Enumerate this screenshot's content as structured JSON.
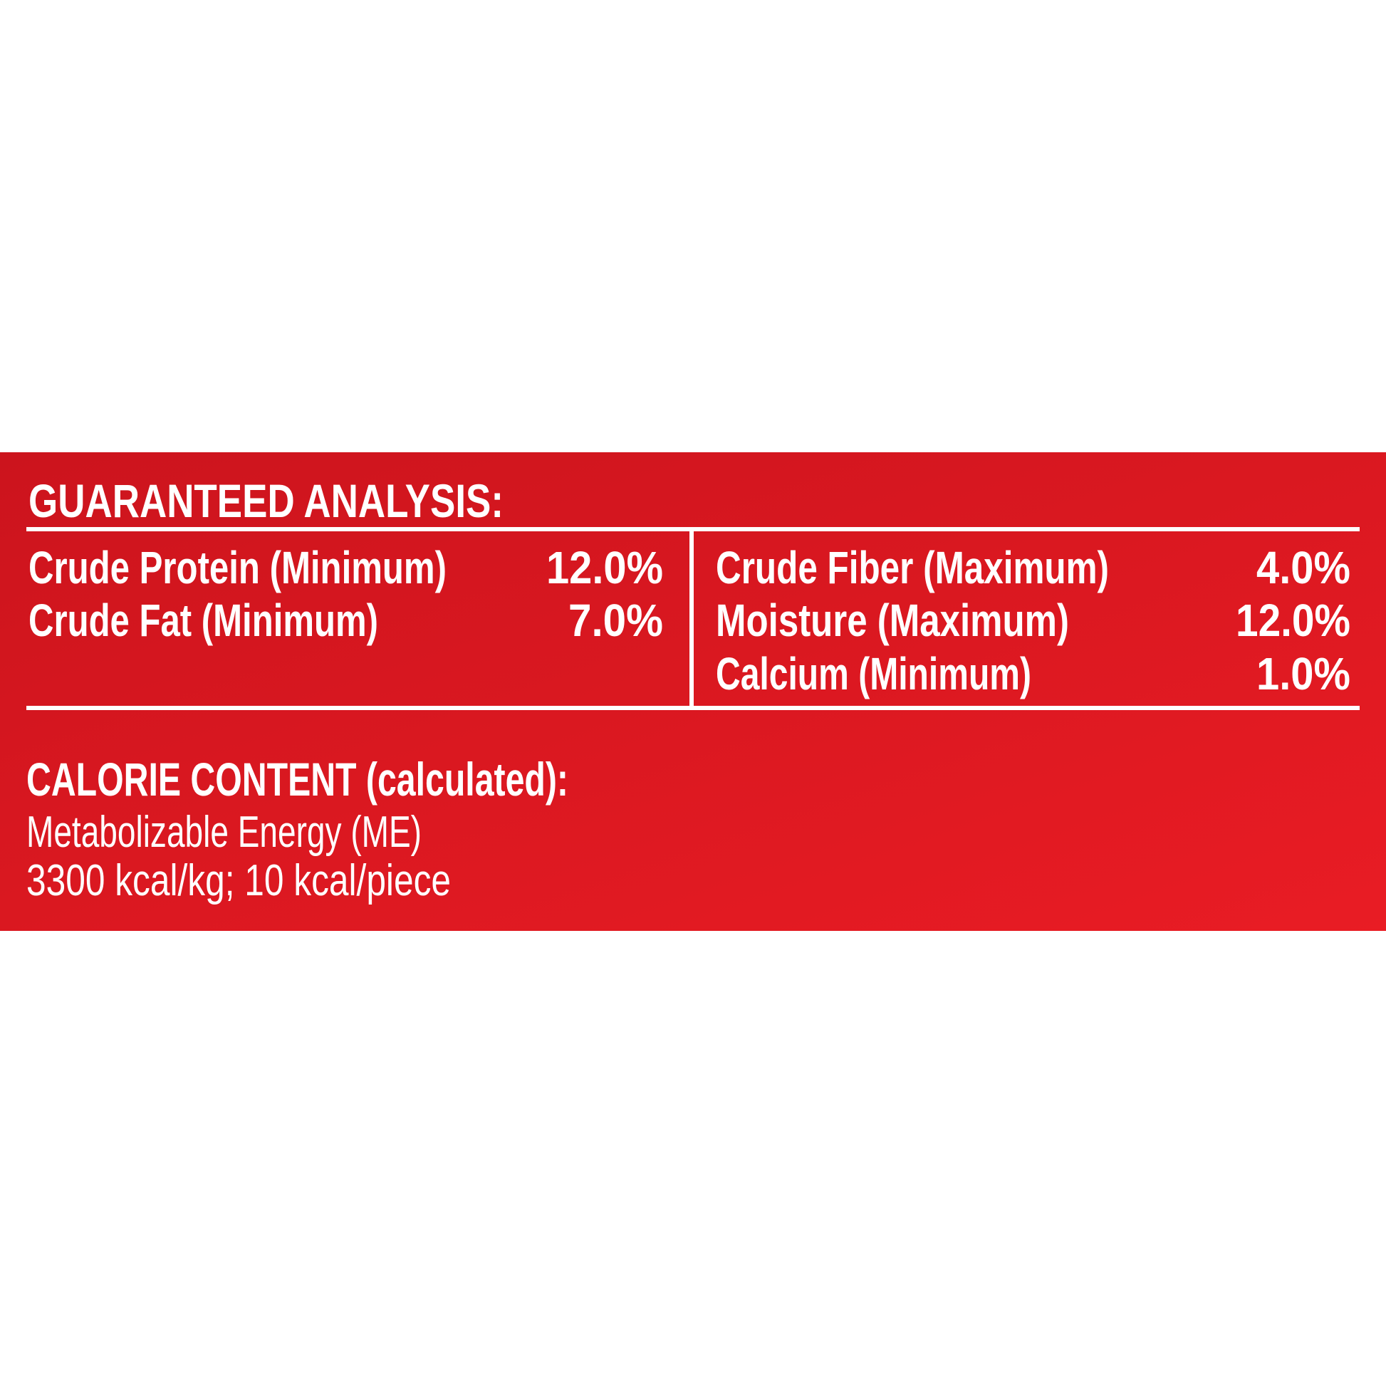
{
  "guaranteed_analysis": {
    "title": "GUARANTEED ANALYSIS:",
    "left": [
      {
        "label": "Crude Protein (Minimum)",
        "value": "12.0%"
      },
      {
        "label": "Crude Fat (Minimum)",
        "value": "7.0%"
      }
    ],
    "right": [
      {
        "label": "Crude Fiber (Maximum)",
        "value": "4.0%"
      },
      {
        "label": "Moisture (Maximum)",
        "value": "12.0%"
      },
      {
        "label": "Calcium (Minimum)",
        "value": "1.0%"
      }
    ]
  },
  "calorie_content": {
    "title": "CALORIE CONTENT (calculated):",
    "lines": [
      "Metabolizable Energy (ME)",
      "3300 kcal/kg; 10 kcal/piece"
    ]
  }
}
